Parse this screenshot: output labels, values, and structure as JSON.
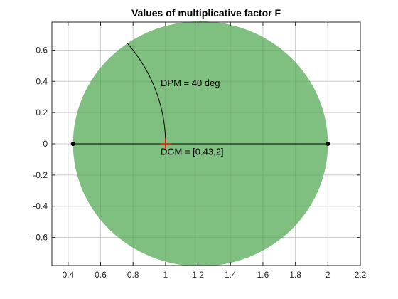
{
  "chart_data": {
    "type": "scatter",
    "title": "Values of multiplicative factor F",
    "xlabel": "",
    "ylabel": "",
    "xlim": [
      0.3,
      2.2
    ],
    "ylim": [
      -0.78,
      0.78
    ],
    "xticks": [
      0.4,
      0.6,
      0.8,
      1,
      1.2,
      1.4,
      1.6,
      1.8,
      2,
      2.2
    ],
    "xtick_labels": [
      "0.4",
      "0.6",
      "0.8",
      "1",
      "1.2",
      "1.4",
      "1.6",
      "1.8",
      "2",
      "2.2"
    ],
    "yticks": [
      0.6,
      0.4,
      0.2,
      0,
      -0.2,
      -0.4,
      -0.6
    ],
    "ytick_labels": [
      "0.6",
      "0.4",
      "0.2",
      "0",
      "-0.2",
      "-0.4",
      "-0.6"
    ],
    "grid": true,
    "disk": {
      "center_x": 1.215,
      "center_y": 0,
      "radius": 0.785,
      "color": "#7fbf7f"
    },
    "gain_margin_segment": {
      "x": [
        0.43,
        2
      ],
      "y": [
        0,
        0
      ],
      "color": "#000000"
    },
    "gain_margin_endpoints": [
      {
        "x": 0.43,
        "y": 0
      },
      {
        "x": 2,
        "y": 0
      }
    ],
    "phase_margin_arc": {
      "radius": 1,
      "start_deg": 0,
      "end_deg": 40,
      "color": "#000000"
    },
    "nominal_point": {
      "x": 1,
      "y": 0,
      "marker": "+",
      "color": "#ff0000"
    },
    "annotations": [
      {
        "text": "DPM = 40 deg",
        "x": 0.97,
        "y": 0.37
      },
      {
        "text": "DGM = [0.43,2]",
        "x": 0.97,
        "y": -0.07
      }
    ]
  }
}
